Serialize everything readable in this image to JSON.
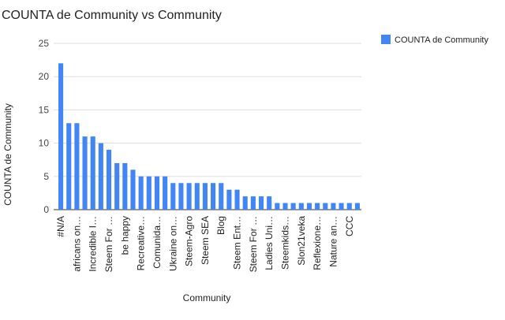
{
  "chart_data": {
    "type": "bar",
    "title": "COUNTA de Community vs Community",
    "xlabel": "Community",
    "ylabel": "COUNTA de Community",
    "ylim": [
      0,
      25
    ],
    "yticks": [
      0,
      5,
      10,
      15,
      20,
      25
    ],
    "grid": true,
    "legend": {
      "position": "right",
      "entries": [
        "COUNTA de Community"
      ]
    },
    "color": "#4285f4",
    "tick_labels": [
      "#N/A",
      "africans on…",
      "Incredible I…",
      "Steem For …",
      "be happy",
      "Recreative…",
      "Comunida…",
      "Ukraine on…",
      "Steem-Agro",
      "Steem SEA",
      "Blog",
      "Steem Ent…",
      "Steem For …",
      "Ladies Uni…",
      "Steemkids…",
      "Slon21veka",
      "Reflexione…",
      "Nature an…",
      "CCC"
    ],
    "values": [
      22,
      13,
      13,
      11,
      11,
      10,
      9,
      7,
      7,
      6,
      5,
      5,
      5,
      5,
      4,
      4,
      4,
      4,
      4,
      4,
      4,
      3,
      3,
      2,
      2,
      2,
      2,
      1,
      1,
      1,
      1,
      1,
      1,
      1,
      1,
      1,
      1,
      1
    ]
  }
}
